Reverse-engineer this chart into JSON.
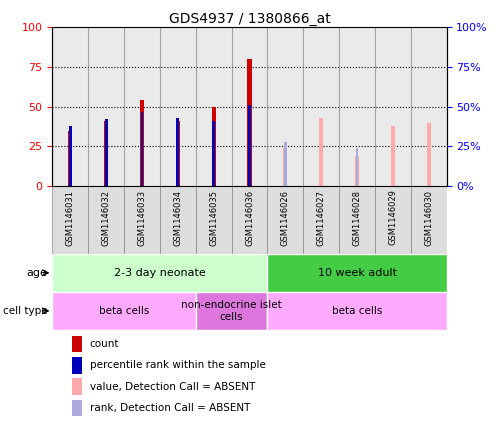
{
  "title": "GDS4937 / 1380866_at",
  "samples": [
    "GSM1146031",
    "GSM1146032",
    "GSM1146033",
    "GSM1146034",
    "GSM1146035",
    "GSM1146036",
    "GSM1146026",
    "GSM1146027",
    "GSM1146028",
    "GSM1146029",
    "GSM1146030"
  ],
  "count_values": [
    35,
    41,
    54,
    41,
    50,
    80,
    null,
    null,
    null,
    null,
    null
  ],
  "rank_values": [
    38,
    42,
    47,
    43,
    41,
    51,
    null,
    null,
    null,
    null,
    null
  ],
  "absent_count_values": [
    null,
    null,
    null,
    null,
    null,
    null,
    24,
    43,
    19,
    38,
    40
  ],
  "absent_rank_values": [
    null,
    null,
    null,
    null,
    null,
    null,
    28,
    null,
    24,
    null,
    null
  ],
  "ylim": [
    0,
    100
  ],
  "yticks": [
    0,
    25,
    50,
    75,
    100
  ],
  "color_count": "#cc0000",
  "color_rank": "#0000bb",
  "color_absent_count": "#ffaaaa",
  "color_absent_rank": "#aaaadd",
  "age_groups": [
    {
      "label": "2-3 day neonate",
      "start": 0,
      "end": 6,
      "color": "#ccffcc"
    },
    {
      "label": "10 week adult",
      "start": 6,
      "end": 11,
      "color": "#44cc44"
    }
  ],
  "cell_groups": [
    {
      "label": "beta cells",
      "start": 0,
      "end": 4,
      "color": "#ffaaff"
    },
    {
      "label": "non-endocrine islet\ncells",
      "start": 4,
      "end": 6,
      "color": "#dd77dd"
    },
    {
      "label": "beta cells",
      "start": 6,
      "end": 11,
      "color": "#ffaaff"
    }
  ],
  "legend_items": [
    {
      "color": "#cc0000",
      "label": "count"
    },
    {
      "color": "#0000bb",
      "label": "percentile rank within the sample"
    },
    {
      "color": "#ffaaaa",
      "label": "value, Detection Call = ABSENT"
    },
    {
      "color": "#aaaadd",
      "label": "rank, Detection Call = ABSENT"
    }
  ],
  "bar_width": 0.12,
  "rank_square_size": 0.08
}
